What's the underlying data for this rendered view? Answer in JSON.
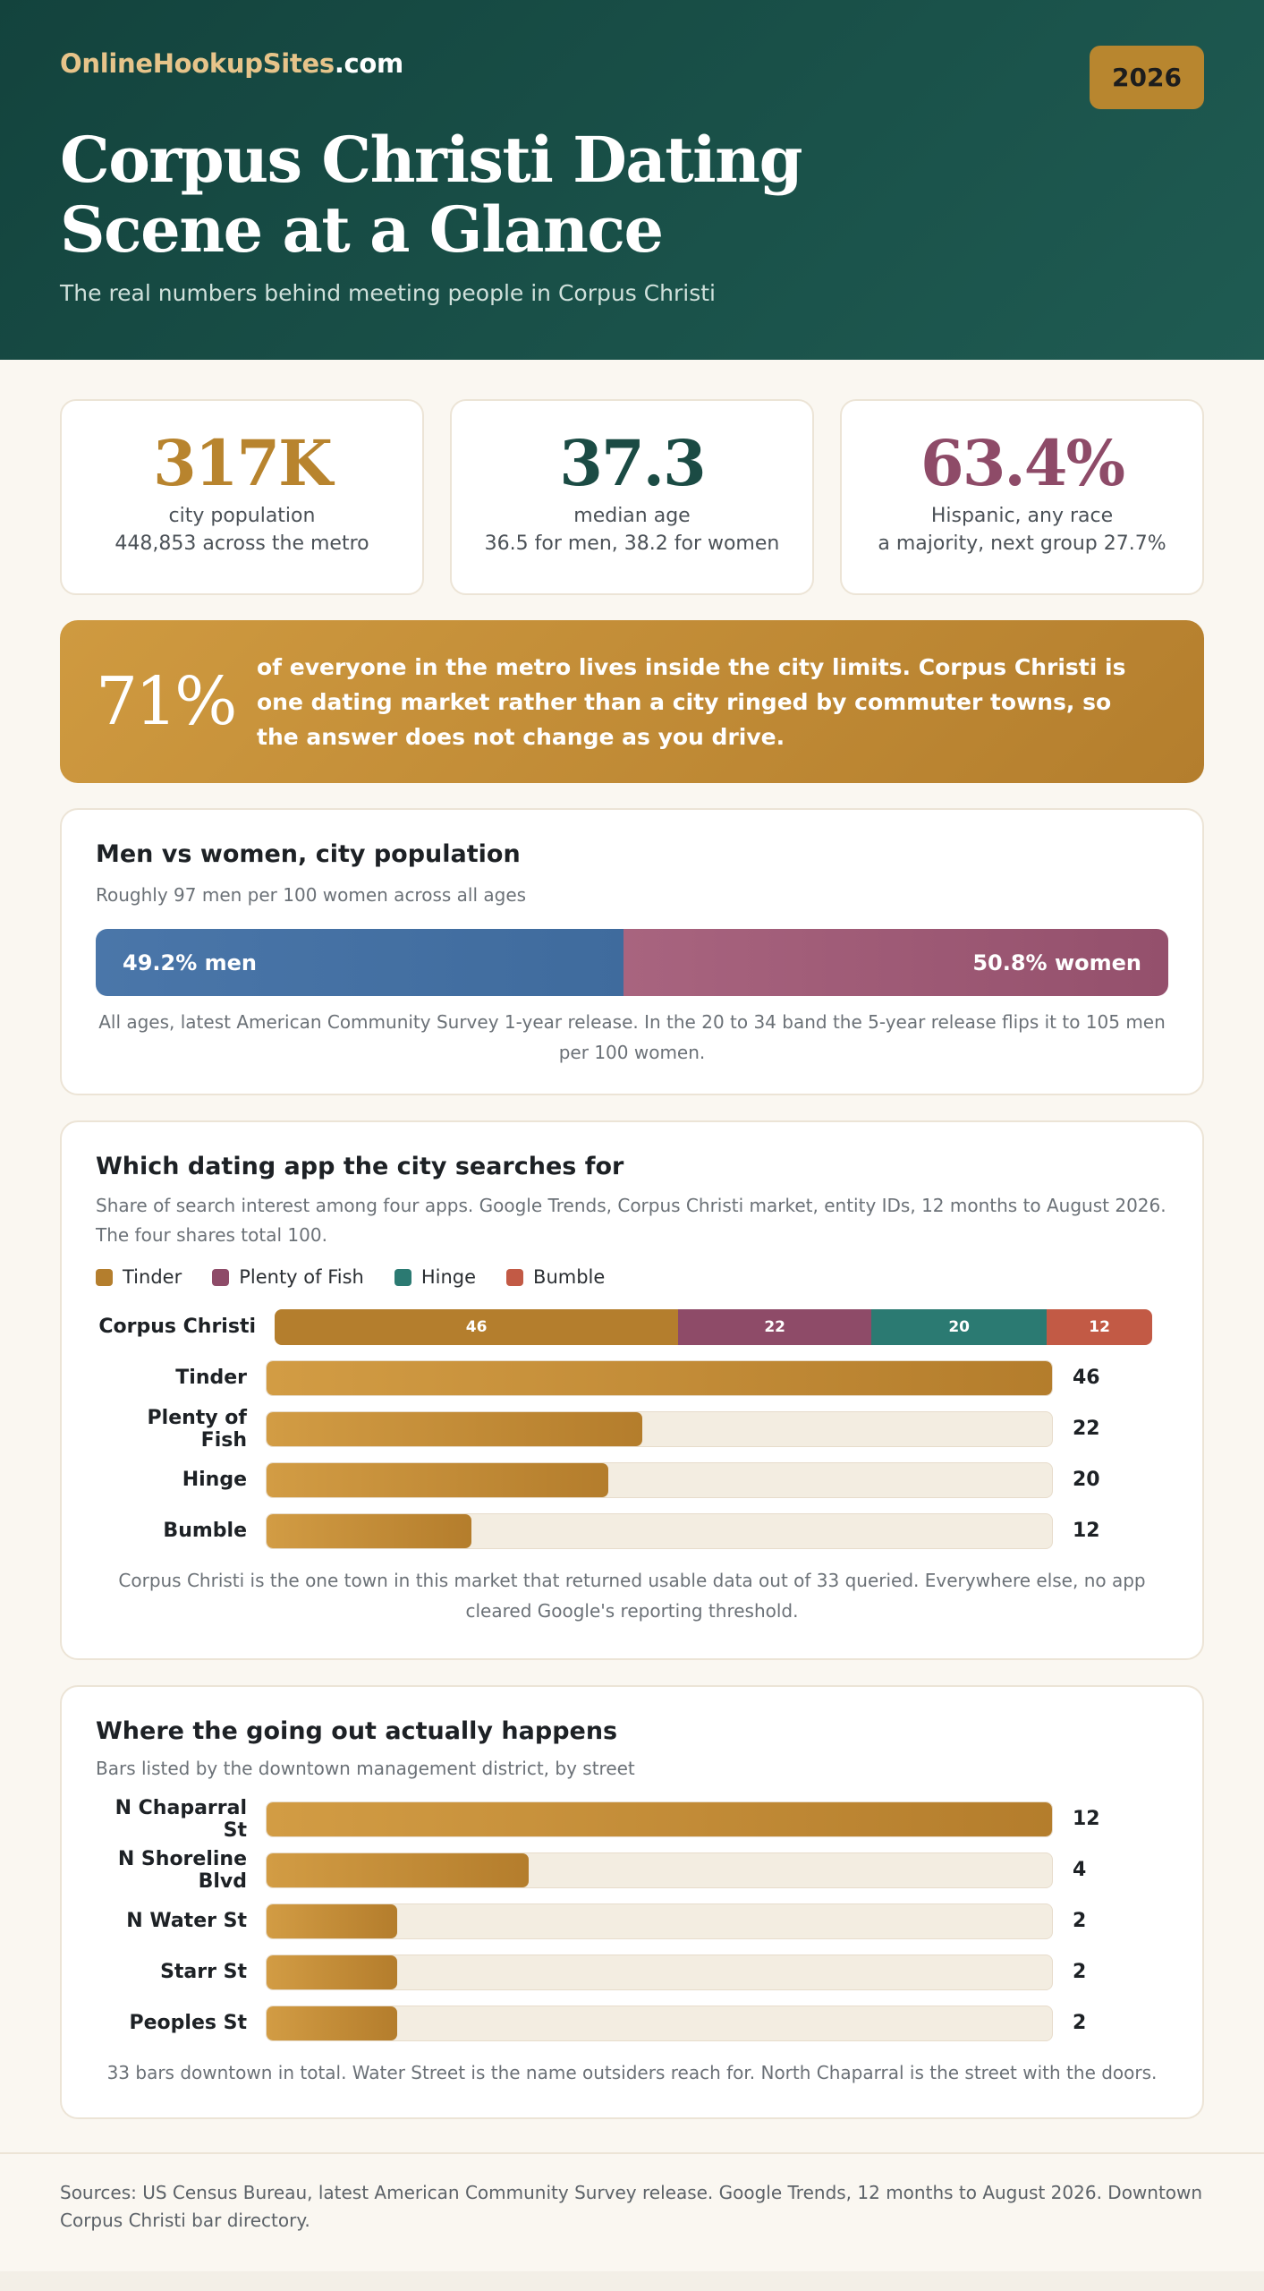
{
  "header": {
    "brand_part1": "OnlineHookupSites",
    "brand_part2": ".com",
    "year_badge": "2026",
    "title_line1": "Corpus Christi Dating",
    "title_line2": "Scene at a Glance",
    "subtitle": "The real numbers behind meeting people in Corpus Christi"
  },
  "stats": [
    {
      "value": "317K",
      "label": "city population",
      "detail": "448,853 across the metro",
      "color": "#b8842e"
    },
    {
      "value": "37.3",
      "label": "median age",
      "detail": "36.5 for men, 38.2 for women",
      "color": "#1b4b44"
    },
    {
      "value": "63.4%",
      "label": "Hispanic, any race",
      "detail": "a majority, next group 27.7%",
      "color": "#8e4b68"
    }
  ],
  "callout": {
    "value": "71%",
    "text": "of everyone in the metro lives inside the city limits. Corpus Christi is one dating market rather than a city ringed by commuter towns, so the answer does not change as you drive."
  },
  "sex_panel": {
    "title": "Men vs women, city population",
    "subtitle": "Roughly 97 men per 100 women across all ages",
    "men_label": "49.2% men",
    "women_label": "50.8% women",
    "note": "All ages, latest American Community Survey 1-year release. In the 20 to 34 band the 5-year release flips it to 105 men per 100 women."
  },
  "apps_panel": {
    "title": "Which dating app the city searches for",
    "subtitle": "Share of search interest among four apps. Google Trends, Corpus Christi market, entity IDs, 12 months to August 2026. The four shares total 100.",
    "note": "Corpus Christi is the one town in this market that returned usable data out of 33 queried. Everywhere else, no app cleared Google's reporting threshold."
  },
  "bars_panel": {
    "title": "Where the going out actually happens",
    "subtitle": "Bars listed by the downtown management district, by street",
    "note": "33 bars downtown in total. Water Street is the name outsiders reach for. North Chaparral is the street with the doors."
  },
  "footer": {
    "sources": "Sources: US Census Bureau, latest American Community Survey release. Google Trends, 12 months to August 2026. Downtown Corpus Christi bar directory."
  },
  "chart_data": [
    {
      "type": "bar",
      "orientation": "horizontal-stacked",
      "title": "Men vs women, city population",
      "categories": [
        "men",
        "women"
      ],
      "values": [
        49.2,
        50.8
      ],
      "colors": [
        "#4272a5",
        "#9e5a75"
      ]
    },
    {
      "type": "bar",
      "orientation": "horizontal-stacked",
      "title": "Which dating app the city searches for",
      "stack_label": "Corpus Christi",
      "legend": "top-left",
      "series": [
        {
          "name": "Tinder",
          "value": 46,
          "color": "#b47e2d"
        },
        {
          "name": "Plenty of Fish",
          "value": 22,
          "color": "#8e4b68"
        },
        {
          "name": "Hinge",
          "value": 20,
          "color": "#2b7a72"
        },
        {
          "name": "Bumble",
          "value": 12,
          "color": "#c25a45"
        }
      ]
    },
    {
      "type": "bar",
      "orientation": "horizontal",
      "title": "Which dating app the city searches for",
      "categories": [
        "Tinder",
        "Plenty of Fish",
        "Hinge",
        "Bumble"
      ],
      "values": [
        46,
        22,
        20,
        12
      ],
      "xlim": [
        0,
        46
      ]
    },
    {
      "type": "bar",
      "orientation": "horizontal",
      "title": "Where the going out actually happens",
      "categories": [
        "N Chaparral St",
        "N Shoreline Blvd",
        "N Water St",
        "Starr St",
        "Peoples St"
      ],
      "values": [
        12,
        4,
        2,
        2,
        2
      ],
      "xlim": [
        0,
        12
      ]
    }
  ]
}
